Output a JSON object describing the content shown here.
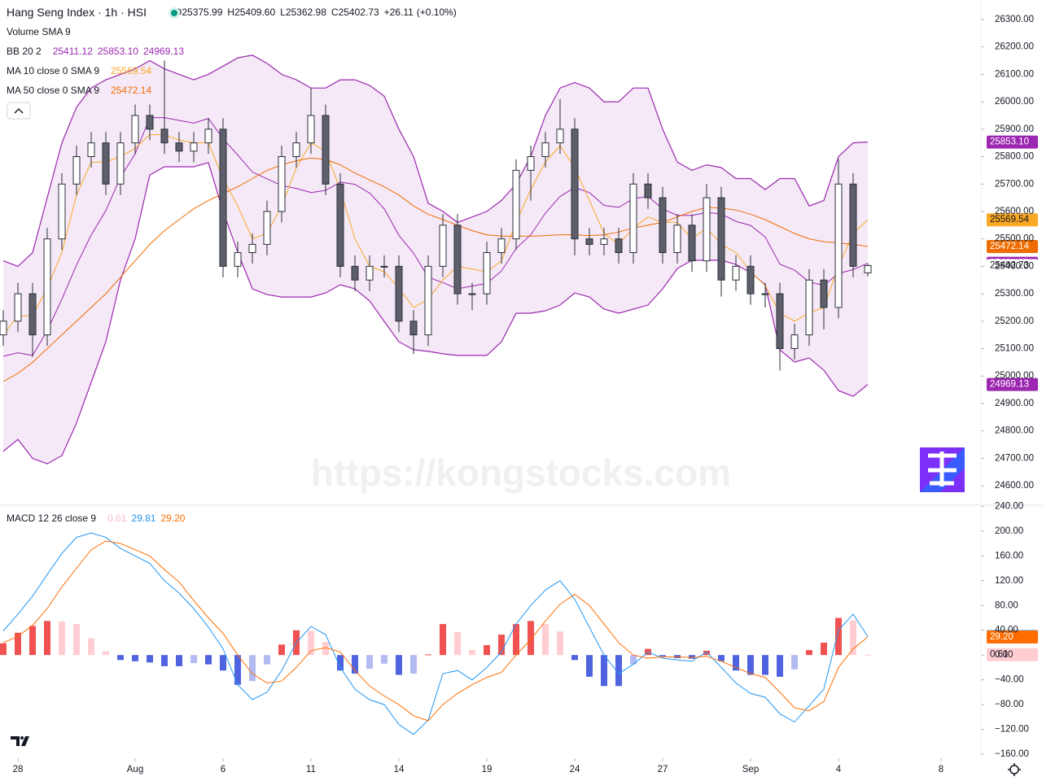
{
  "chart_data": [
    {
      "type": "candlestick",
      "title": "Hang Seng Index · 1h · HSI",
      "status_labels": {
        "open": "O",
        "high": "H",
        "low": "L",
        "close": "C"
      },
      "change": {
        "value": 26.11,
        "label": "+26.11"
      },
      "change_pct": {
        "value": 0.1,
        "label": "(+0.10%)"
      },
      "volume_label": "Volume SMA 9",
      "bb_label": "BB 20 2",
      "ma10_label": "MA 10 close 0 SMA 9",
      "ma50_label": "MA 50 close 0 SMA 9",
      "watermark": "https://kongstocks.com",
      "up_color": "#ffffff",
      "down_color": "#5d606b",
      "border_color": "#2a2e39",
      "band_fill": "rgba(156,39,176,0.1)",
      "open": {
        "values": [
          25150,
          25200,
          25300,
          25150,
          25500,
          25700,
          25800,
          25850,
          25700,
          25850,
          25950,
          25900,
          25850,
          25820,
          25850,
          25900,
          25400,
          25450,
          25480,
          25600,
          25800,
          25850,
          25950,
          25700,
          25400,
          25350,
          25400,
          25400,
          25200,
          25150,
          25400,
          25550,
          25300,
          25300,
          25450,
          25500,
          25750,
          25800,
          25850,
          25900,
          25500,
          25480,
          25500,
          25450,
          25700,
          25650,
          25450,
          25550,
          25420,
          25650,
          25350,
          25400,
          25300,
          25300,
          25100,
          25150,
          25350,
          25250,
          25700,
          25375.99
        ]
      },
      "high": {
        "values": [
          25240,
          25340,
          25340,
          25540,
          25740,
          25840,
          25890,
          25890,
          25890,
          25990,
          25990,
          26150,
          25890,
          25890,
          25940,
          25940,
          25490,
          25520,
          25640,
          25840,
          25890,
          26050,
          25990,
          25740,
          25440,
          25440,
          25440,
          25440,
          25240,
          25440,
          25590,
          25590,
          25340,
          25490,
          25540,
          25790,
          25840,
          25890,
          26010,
          25940,
          25540,
          25540,
          25540,
          25740,
          25740,
          25690,
          25590,
          25590,
          25700,
          25690,
          25440,
          25440,
          25340,
          25340,
          25190,
          25390,
          25390,
          25790,
          25740,
          25409.6
        ],
        "value_labels": [
          null,
          null,
          null,
          null,
          null,
          null,
          null,
          null,
          null,
          null,
          null,
          null,
          null,
          null,
          null,
          null,
          null,
          null,
          null,
          null,
          null,
          null,
          null,
          null,
          null,
          null,
          null,
          null,
          null,
          null,
          null,
          null,
          null,
          null,
          null,
          null,
          null,
          null,
          null,
          null,
          null,
          null,
          null,
          null,
          null,
          null,
          null,
          null,
          null,
          null,
          null,
          null,
          null,
          null,
          null,
          null,
          null,
          null,
          null,
          "25409.60"
        ]
      },
      "low": {
        "values": [
          25110,
          25160,
          25070,
          25110,
          25460,
          25660,
          25760,
          25660,
          25660,
          25810,
          25860,
          25810,
          25780,
          25780,
          25810,
          25360,
          25360,
          25410,
          25440,
          25560,
          25760,
          25810,
          25660,
          25360,
          25310,
          25310,
          25360,
          25160,
          25080,
          25110,
          25360,
          25260,
          25240,
          25260,
          25410,
          25460,
          25640,
          25760,
          25810,
          25440,
          25440,
          25440,
          25410,
          25410,
          25610,
          25410,
          25410,
          25380,
          25380,
          25290,
          25310,
          25260,
          25250,
          25020,
          25060,
          25110,
          25170,
          25210,
          25360,
          25362.98
        ]
      },
      "close": {
        "values": [
          25200,
          25300,
          25150,
          25500,
          25700,
          25800,
          25850,
          25700,
          25850,
          25950,
          25900,
          25850,
          25820,
          25850,
          25900,
          25400,
          25450,
          25480,
          25600,
          25800,
          25850,
          25950,
          25700,
          25400,
          25350,
          25400,
          25400,
          25200,
          25150,
          25400,
          25550,
          25300,
          25300,
          25450,
          25500,
          25750,
          25800,
          25850,
          25900,
          25500,
          25480,
          25500,
          25450,
          25700,
          25650,
          25450,
          25550,
          25420,
          25650,
          25350,
          25400,
          25300,
          25300,
          25100,
          25150,
          25350,
          25250,
          25700,
          25400,
          25402.73
        ]
      },
      "bb_upper": {
        "color": "#9c27b0",
        "values": [
          25420,
          25400,
          25450,
          25650,
          25850,
          25980,
          26050,
          26080,
          26100,
          26120,
          26150,
          26120,
          26100,
          26080,
          26100,
          26130,
          26160,
          26170,
          26140,
          26100,
          26080,
          26050,
          26050,
          26080,
          26080,
          26060,
          26020,
          25900,
          25800,
          25630,
          25600,
          25560,
          25580,
          25600,
          25640,
          25700,
          25800,
          25950,
          26050,
          26070,
          26050,
          26000,
          26000,
          26050,
          26050,
          25900,
          25780,
          25750,
          25770,
          25760,
          25720,
          25720,
          25680,
          25720,
          25720,
          25620,
          25640,
          25800,
          25850,
          25853.1
        ],
        "value_labels": [
          null,
          null,
          null,
          null,
          null,
          null,
          null,
          null,
          null,
          null,
          null,
          null,
          null,
          null,
          null,
          null,
          null,
          null,
          null,
          null,
          null,
          null,
          null,
          null,
          null,
          null,
          null,
          null,
          null,
          null,
          null,
          null,
          null,
          null,
          null,
          null,
          null,
          null,
          null,
          null,
          null,
          null,
          null,
          null,
          null,
          null,
          null,
          null,
          null,
          null,
          null,
          null,
          null,
          null,
          null,
          null,
          null,
          null,
          null,
          "25853.10"
        ]
      },
      "bb_basis": {
        "color": "#9c27b0",
        "values": [
          25072,
          25085,
          25075,
          25165,
          25280,
          25405,
          25514,
          25603,
          25725,
          25810,
          25942,
          25942,
          25932,
          25922,
          25939,
          25865,
          25806,
          25744,
          25719,
          25694,
          25684,
          25669,
          25677,
          25707,
          25699,
          25667,
          25610,
          25513,
          25448,
          25360,
          25341,
          25318,
          25328,
          25338,
          25383,
          25465,
          25515,
          25594,
          25655,
          25687,
          25669,
          25622,
          25615,
          25647,
          25655,
          25609,
          25586,
          25586,
          25596,
          25591,
          25564,
          25549,
          25507,
          25408,
          25386,
          25343,
          25331,
          25374,
          25388,
          25411.12
        ]
      },
      "bb_lower": {
        "color": "#9c27b0",
        "values": [
          24725,
          24769,
          24700,
          24680,
          24710,
          24829,
          24977,
          25125,
          25350,
          25500,
          25733,
          25763,
          25763,
          25763,
          25778,
          25600,
          25452,
          25318,
          25297,
          25288,
          25288,
          25288,
          25303,
          25333,
          25318,
          25274,
          25199,
          25125,
          25096,
          25090,
          25081,
          25075,
          25075,
          25075,
          25125,
          25229,
          25229,
          25238,
          25259,
          25303,
          25288,
          25244,
          25229,
          25244,
          25259,
          25318,
          25392,
          25422,
          25422,
          25422,
          25407,
          25377,
          25333,
          25096,
          25051,
          25066,
          25021,
          24947,
          24926,
          24969.13
        ]
      },
      "ma10": {
        "color": "#f9a825",
        "values": [
          25150,
          25220,
          25220,
          25320,
          25450,
          25660,
          25780,
          25780,
          25800,
          25830,
          25880,
          25880,
          25860,
          25850,
          25850,
          25720,
          25620,
          25500,
          25520,
          25620,
          25760,
          25850,
          25820,
          25680,
          25500,
          25400,
          25380,
          25320,
          25250,
          25280,
          25350,
          25400,
          25390,
          25380,
          25420,
          25560,
          25680,
          25780,
          25840,
          25760,
          25640,
          25520,
          25480,
          25540,
          25580,
          25560,
          25560,
          25500,
          25540,
          25480,
          25450,
          25380,
          25330,
          25230,
          25200,
          25230,
          25250,
          25400,
          25520,
          25569.54
        ]
      },
      "ma50": {
        "color": "#ef6c00",
        "values": [
          24980,
          25010,
          25050,
          25100,
          25150,
          25200,
          25250,
          25300,
          25360,
          25420,
          25480,
          25530,
          25570,
          25610,
          25640,
          25665,
          25690,
          25720,
          25750,
          25770,
          25785,
          25795,
          25790,
          25770,
          25740,
          25715,
          25690,
          25660,
          25620,
          25590,
          25570,
          25550,
          25530,
          25515,
          25510,
          25510,
          25510,
          25512,
          25515,
          25515,
          25512,
          25515,
          25525,
          25540,
          25550,
          25560,
          25580,
          25600,
          25615,
          25612,
          25605,
          25590,
          25570,
          25545,
          25520,
          25500,
          25490,
          25485,
          25480,
          25472.14
        ]
      },
      "close_label_color": "#131722",
      "xlim": [
        0,
        66
      ],
      "xticks": [
        {
          "value": 1,
          "label": "28"
        },
        {
          "value": 9,
          "label": "Aug"
        },
        {
          "value": 15,
          "label": "6"
        },
        {
          "value": 21,
          "label": "11"
        },
        {
          "value": 27,
          "label": "14"
        },
        {
          "value": 33,
          "label": "19"
        },
        {
          "value": 39,
          "label": "24"
        },
        {
          "value": 45,
          "label": "27"
        },
        {
          "value": 51,
          "label": "Sep"
        },
        {
          "value": 57,
          "label": "4"
        },
        {
          "value": 64,
          "label": "8"
        }
      ],
      "ylim": [
        24532,
        26371
      ],
      "yticks": [
        {
          "value": 26300,
          "label": "26300.00"
        },
        {
          "value": 26200,
          "label": "26200.00"
        },
        {
          "value": 26100,
          "label": "26100.00"
        },
        {
          "value": 26000,
          "label": "26000.00"
        },
        {
          "value": 25900,
          "label": "25900.00"
        },
        {
          "value": 25800,
          "label": "25800.00"
        },
        {
          "value": 25700,
          "label": "25700.00"
        },
        {
          "value": 25600,
          "label": "25600.00"
        },
        {
          "value": 25500,
          "label": "25500.00"
        },
        {
          "value": 25400,
          "label": "25400.00"
        },
        {
          "value": 25300,
          "label": "25300.00"
        },
        {
          "value": 25200,
          "label": "25200.00"
        },
        {
          "value": 25100,
          "label": "25100.00"
        },
        {
          "value": 25000,
          "label": "25000.00"
        },
        {
          "value": 24900,
          "label": "24900.00"
        },
        {
          "value": 24800,
          "label": "24800.00"
        },
        {
          "value": 24700,
          "label": "24700.00"
        },
        {
          "value": 24600,
          "label": "24600.00"
        }
      ]
    },
    {
      "type": "macd",
      "title": "MACD 12 26 close 9",
      "histogram": {
        "colors": [
          "#f05252",
          "#ffcdd2",
          "#4f63e0",
          "#b3bbf2"
        ],
        "values": [
          19,
          36,
          47,
          55,
          54,
          50,
          27,
          6,
          -8,
          -10,
          -12,
          -18,
          -18,
          -13,
          -15,
          -25,
          -48,
          -42,
          -15,
          17,
          40,
          39,
          21,
          -25,
          -30,
          -22,
          -14,
          -32,
          -30,
          1,
          50,
          37,
          8,
          16,
          33,
          50,
          55,
          50,
          38,
          -8,
          -35,
          -50,
          -50,
          -15,
          10,
          -2,
          -5,
          -6,
          7,
          -10,
          -25,
          -32,
          -32,
          -35,
          -23,
          8,
          20,
          60,
          56,
          0.61
        ]
      },
      "macd": {
        "color": "#2196f3",
        "values": [
          39,
          66,
          95,
          130,
          164,
          190,
          197,
          190,
          172,
          160,
          148,
          120,
          100,
          75,
          45,
          10,
          -48,
          -72,
          -60,
          -25,
          20,
          46,
          33,
          -20,
          -55,
          -72,
          -80,
          -112,
          -128,
          -105,
          -30,
          -25,
          -40,
          -20,
          5,
          50,
          80,
          105,
          120,
          90,
          45,
          0,
          -30,
          -15,
          5,
          -5,
          -8,
          -10,
          5,
          -20,
          -45,
          -62,
          -68,
          -95,
          -108,
          -82,
          -55,
          40,
          66,
          29.81
        ]
      },
      "signal": {
        "color": "#ff6d00",
        "values": [
          20,
          30,
          48,
          75,
          110,
          140,
          170,
          184,
          180,
          170,
          160,
          138,
          118,
          88,
          60,
          35,
          0,
          -30,
          -45,
          -42,
          -20,
          7,
          12,
          5,
          -25,
          -50,
          -66,
          -80,
          -98,
          -106,
          -80,
          -62,
          -48,
          -36,
          -28,
          0,
          25,
          55,
          82,
          98,
          80,
          50,
          20,
          0,
          -5,
          -3,
          -3,
          -4,
          -2,
          -10,
          -20,
          -30,
          -36,
          -60,
          -85,
          -90,
          -75,
          -20,
          10,
          29.2
        ],
        "value_labels": [
          null,
          null,
          null,
          null,
          null,
          null,
          null,
          null,
          null,
          null,
          null,
          null,
          null,
          null,
          null,
          null,
          null,
          null,
          null,
          null,
          null,
          null,
          null,
          null,
          null,
          null,
          null,
          null,
          null,
          null,
          null,
          null,
          null,
          null,
          null,
          null,
          null,
          null,
          null,
          null,
          null,
          null,
          null,
          null,
          null,
          null,
          null,
          null,
          null,
          null,
          null,
          null,
          null,
          null,
          null,
          null,
          null,
          null,
          null,
          "29.20"
        ]
      },
      "ylim": [
        -177,
        240.5
      ],
      "yticks": [
        {
          "value": 240,
          "label": "240.00"
        },
        {
          "value": 200,
          "label": "200.00"
        },
        {
          "value": 160,
          "label": "160.00"
        },
        {
          "value": 120,
          "label": "120.00"
        },
        {
          "value": 80,
          "label": "80.00"
        },
        {
          "value": 40,
          "label": "40.00"
        },
        {
          "value": 0,
          "label": "0.00"
        },
        {
          "value": -40,
          "label": "−40.00"
        },
        {
          "value": -80,
          "label": "−80.00"
        },
        {
          "value": -120,
          "label": "−120.00"
        },
        {
          "value": -160,
          "label": "−160.00"
        }
      ]
    }
  ]
}
